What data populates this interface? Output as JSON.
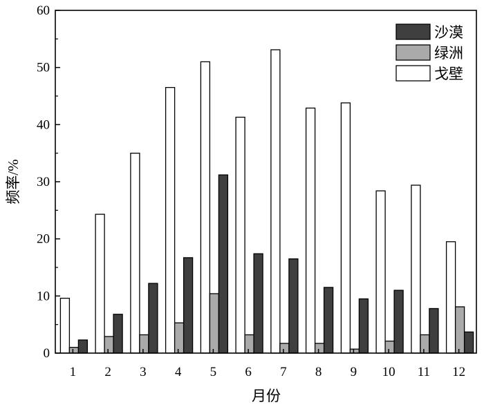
{
  "chart_data": {
    "type": "bar",
    "title": "",
    "xlabel": "月份",
    "ylabel": "频率/%",
    "ylim": [
      0,
      60
    ],
    "yticks": [
      0,
      10,
      20,
      30,
      40,
      50,
      60
    ],
    "categories": [
      "1",
      "2",
      "3",
      "4",
      "5",
      "6",
      "7",
      "8",
      "9",
      "10",
      "11",
      "12"
    ],
    "grid": false,
    "legend_position": "top-right",
    "series": [
      {
        "name": "戈壁",
        "color": "#ffffff",
        "values": [
          9.6,
          24.3,
          35.0,
          46.5,
          51.0,
          41.3,
          53.1,
          42.9,
          43.8,
          28.4,
          29.4,
          19.5
        ]
      },
      {
        "name": "绿洲",
        "color": "#aaaaaa",
        "values": [
          1.0,
          2.9,
          3.2,
          5.3,
          10.4,
          3.2,
          1.7,
          1.7,
          0.7,
          2.1,
          3.2,
          8.1
        ]
      },
      {
        "name": "沙漠",
        "color": "#3f3f3f",
        "values": [
          2.3,
          6.8,
          12.2,
          16.7,
          31.2,
          17.4,
          16.5,
          11.5,
          9.5,
          11.0,
          7.8,
          3.7
        ]
      }
    ],
    "legend_order": [
      "沙漠",
      "绿洲",
      "戈壁"
    ]
  }
}
